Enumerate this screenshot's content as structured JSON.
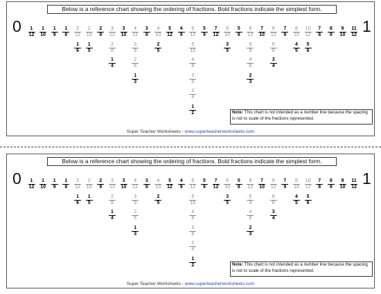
{
  "header_text": "Below is a reference chart showing the ordering of fractions.  Bold fractions indicate the simplest form.",
  "zero_label": "0",
  "one_label": "1",
  "fractions": [
    {
      "n": "1",
      "d": "12",
      "bold": true,
      "col": 0
    },
    {
      "n": "1",
      "d": "10",
      "bold": true,
      "col": 1
    },
    {
      "n": "1",
      "d": "9",
      "bold": true,
      "col": 2
    },
    {
      "n": "1",
      "d": "8",
      "bold": true,
      "col": 3
    },
    {
      "n": "2",
      "d": "12",
      "bold": false,
      "col": 4
    },
    {
      "n": "1",
      "d": "6",
      "bold": true,
      "col": 4
    },
    {
      "n": "2",
      "d": "10",
      "bold": false,
      "col": 5
    },
    {
      "n": "1",
      "d": "5",
      "bold": true,
      "col": 5
    },
    {
      "n": "2",
      "d": "9",
      "bold": true,
      "col": 6
    },
    {
      "n": "3",
      "d": "12",
      "bold": false,
      "col": 7
    },
    {
      "n": "2",
      "d": "8",
      "bold": false,
      "col": 7
    },
    {
      "n": "1",
      "d": "4",
      "bold": true,
      "col": 7
    },
    {
      "n": "3",
      "d": "10",
      "bold": true,
      "col": 8
    },
    {
      "n": "4",
      "d": "12",
      "bold": false,
      "col": 9
    },
    {
      "n": "3",
      "d": "9",
      "bold": false,
      "col": 9
    },
    {
      "n": "2",
      "d": "6",
      "bold": false,
      "col": 9
    },
    {
      "n": "1",
      "d": "3",
      "bold": true,
      "col": 9
    },
    {
      "n": "3",
      "d": "8",
      "bold": true,
      "col": 10
    },
    {
      "n": "4",
      "d": "10",
      "bold": false,
      "col": 11
    },
    {
      "n": "2",
      "d": "5",
      "bold": true,
      "col": 11
    },
    {
      "n": "5",
      "d": "12",
      "bold": true,
      "col": 12
    },
    {
      "n": "4",
      "d": "9",
      "bold": true,
      "col": 13
    },
    {
      "n": "6",
      "d": "12",
      "bold": false,
      "col": 14
    },
    {
      "n": "5",
      "d": "10",
      "bold": false,
      "col": 14
    },
    {
      "n": "4",
      "d": "8",
      "bold": false,
      "col": 14
    },
    {
      "n": "3",
      "d": "6",
      "bold": false,
      "col": 14
    },
    {
      "n": "2",
      "d": "4",
      "bold": false,
      "col": 14
    },
    {
      "n": "1",
      "d": "2",
      "bold": true,
      "col": 14
    },
    {
      "n": "5",
      "d": "9",
      "bold": true,
      "col": 15
    },
    {
      "n": "7",
      "d": "12",
      "bold": true,
      "col": 16
    },
    {
      "n": "6",
      "d": "10",
      "bold": false,
      "col": 17
    },
    {
      "n": "3",
      "d": "5",
      "bold": true,
      "col": 17
    },
    {
      "n": "5",
      "d": "8",
      "bold": true,
      "col": 18
    },
    {
      "n": "8",
      "d": "12",
      "bold": false,
      "col": 19
    },
    {
      "n": "6",
      "d": "9",
      "bold": false,
      "col": 19
    },
    {
      "n": "4",
      "d": "6",
      "bold": false,
      "col": 19
    },
    {
      "n": "2",
      "d": "3",
      "bold": true,
      "col": 19
    },
    {
      "n": "7",
      "d": "10",
      "bold": true,
      "col": 20
    },
    {
      "n": "9",
      "d": "12",
      "bold": false,
      "col": 21
    },
    {
      "n": "6",
      "d": "8",
      "bold": false,
      "col": 21
    },
    {
      "n": "3",
      "d": "4",
      "bold": true,
      "col": 21
    },
    {
      "n": "7",
      "d": "9",
      "bold": true,
      "col": 22
    },
    {
      "n": "8",
      "d": "10",
      "bold": false,
      "col": 23
    },
    {
      "n": "4",
      "d": "5",
      "bold": true,
      "col": 23
    },
    {
      "n": "10",
      "d": "12",
      "bold": false,
      "col": 24
    },
    {
      "n": "5",
      "d": "6",
      "bold": true,
      "col": 24
    },
    {
      "n": "7",
      "d": "8",
      "bold": true,
      "col": 25
    },
    {
      "n": "8",
      "d": "9",
      "bold": true,
      "col": 26
    },
    {
      "n": "9",
      "d": "10",
      "bold": true,
      "col": 27
    },
    {
      "n": "11",
      "d": "12",
      "bold": true,
      "col": 28
    }
  ],
  "note_label": "Note:",
  "note_text": " This chart is not intended as a number line because the spacing is not to scale of the fractions represented.",
  "footer_prefix": "Super Teacher Worksheets - ",
  "footer_link": "www.superteacherworksheets.com"
}
